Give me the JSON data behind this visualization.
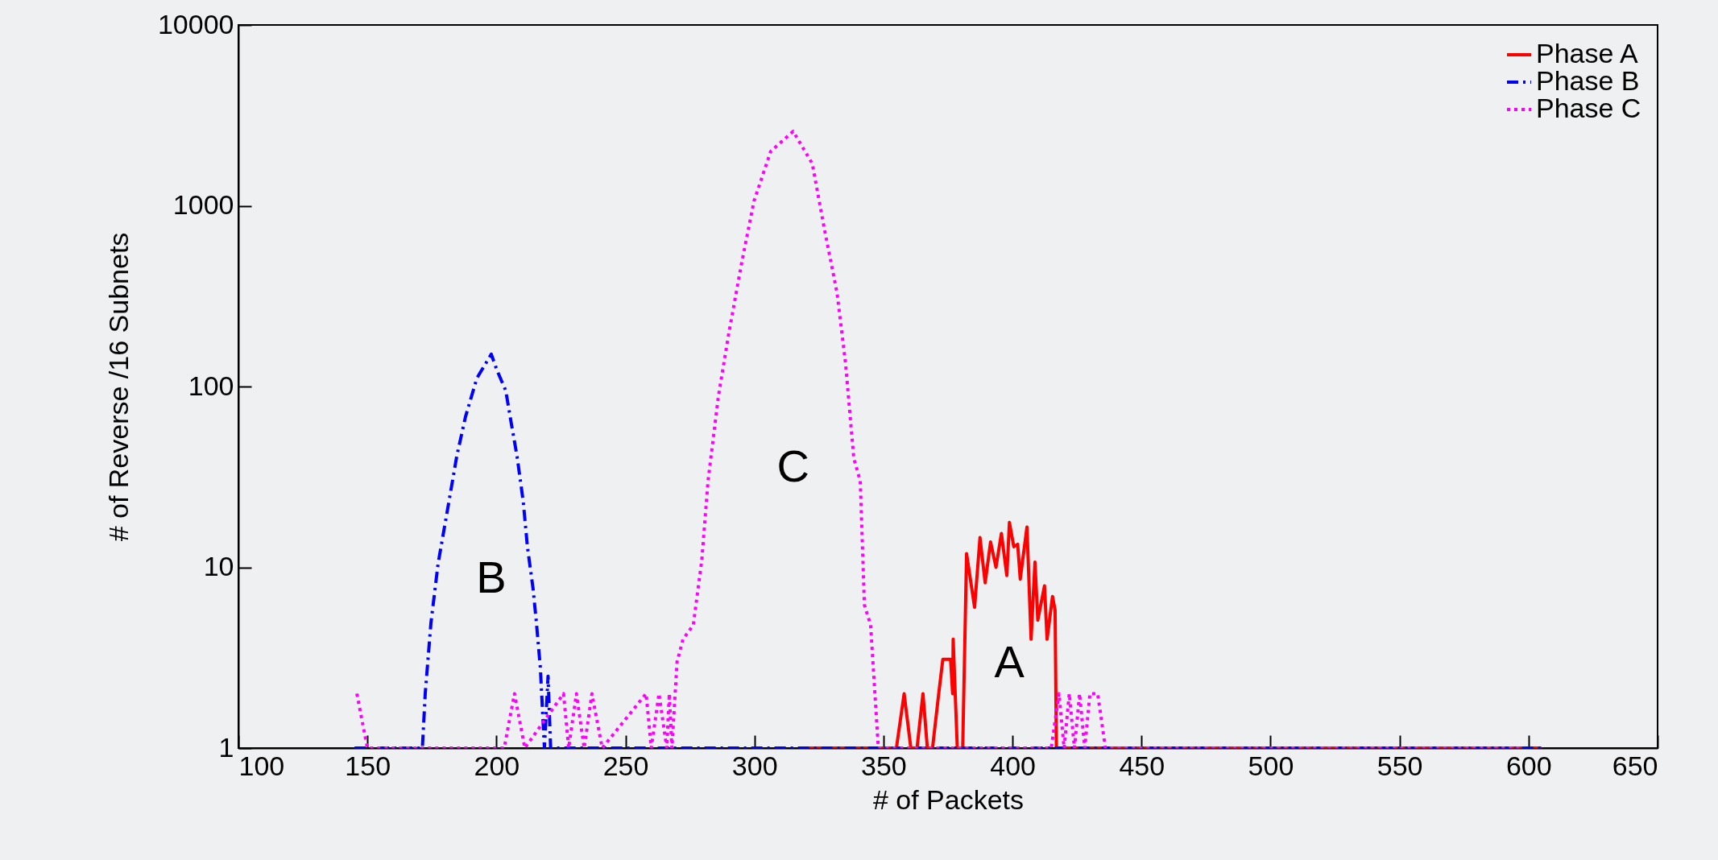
{
  "chart_data": {
    "type": "line",
    "xlabel": "# of Packets",
    "ylabel": "# of Reverse /16 Subnets",
    "log": "y",
    "grid": false,
    "legend": "top right",
    "xlim": [
      100,
      650
    ],
    "xticks": [
      100,
      150,
      200,
      250,
      300,
      350,
      400,
      450,
      500,
      550,
      600,
      650
    ],
    "ylim": [
      1,
      10000
    ],
    "yticks": [
      1,
      10,
      100,
      1000,
      10000
    ],
    "series": [
      {
        "name": "Phase A",
        "color": "#ff0000",
        "line_style": "solid",
        "x": [
          320,
          355,
          358,
          360.6,
          363,
          365.3,
          367,
          369,
          371.4,
          373,
          376,
          376.8,
          377,
          378.6,
          380.7,
          382.2,
          385.3,
          387.4,
          389.4,
          391.5,
          393.6,
          395.7,
          397.8,
          398.8,
          400.5,
          402,
          403,
          405.6,
          407.2,
          408.7,
          409.8,
          412.4,
          413.4,
          415.5,
          416.5,
          417,
          605
        ],
        "values": [
          1,
          1,
          2,
          1,
          1,
          2,
          1,
          1,
          2,
          3.1,
          3.1,
          2,
          4,
          1,
          1,
          11.9,
          6,
          14.6,
          8.2,
          13.8,
          10,
          15.4,
          9,
          17.7,
          13,
          13.4,
          8.6,
          16.7,
          4,
          10.7,
          5.1,
          7.9,
          4,
          6.9,
          5.8,
          1,
          1
        ]
      },
      {
        "name": "Phase B",
        "color": "#0000ff",
        "line_style": "dashed",
        "x": [
          145,
          171.3,
          172.4,
          174.6,
          177.4,
          181.9,
          184.6,
          188,
          192.4,
          198,
          200.2,
          203.6,
          205.8,
          208,
          210.4,
          212,
          214.2,
          215.4,
          217,
          218.6,
          220,
          221,
          605
        ],
        "values": [
          1,
          1,
          2,
          4.9,
          10.5,
          24.5,
          41,
          68,
          111,
          151,
          123,
          95,
          62,
          41,
          23,
          13,
          7.6,
          5.1,
          2.8,
          1,
          2.5,
          1,
          1
        ]
      },
      {
        "name": "Phase C",
        "color": "#ff00ff",
        "line_style": "dotted",
        "x": [
          145.9,
          150,
          203,
          207,
          211,
          226,
          228,
          231,
          234,
          237,
          241,
          258,
          260,
          263,
          266,
          267,
          268,
          270,
          272.3,
          276.3,
          279.6,
          282,
          286,
          290,
          295,
          299.8,
          306.3,
          315,
          322.4,
          327.2,
          332,
          335.3,
          338.5,
          341,
          342.6,
          345,
          348,
          415,
          418,
          420,
          422,
          424,
          426,
          428,
          430,
          433,
          436,
          598
        ],
        "values": [
          2,
          1,
          1,
          2,
          1,
          2,
          1,
          2,
          1,
          2,
          1,
          2,
          1,
          2,
          1,
          2,
          1,
          3,
          4,
          4.8,
          11,
          30,
          88,
          195,
          480,
          1060,
          2000,
          2580,
          1710,
          730,
          330,
          134,
          40,
          30,
          6.2,
          4.8,
          1,
          1,
          2,
          1,
          2,
          1,
          2,
          1,
          2,
          2,
          1,
          1
        ]
      }
    ],
    "annotations": [
      "A",
      "B",
      "C"
    ]
  }
}
